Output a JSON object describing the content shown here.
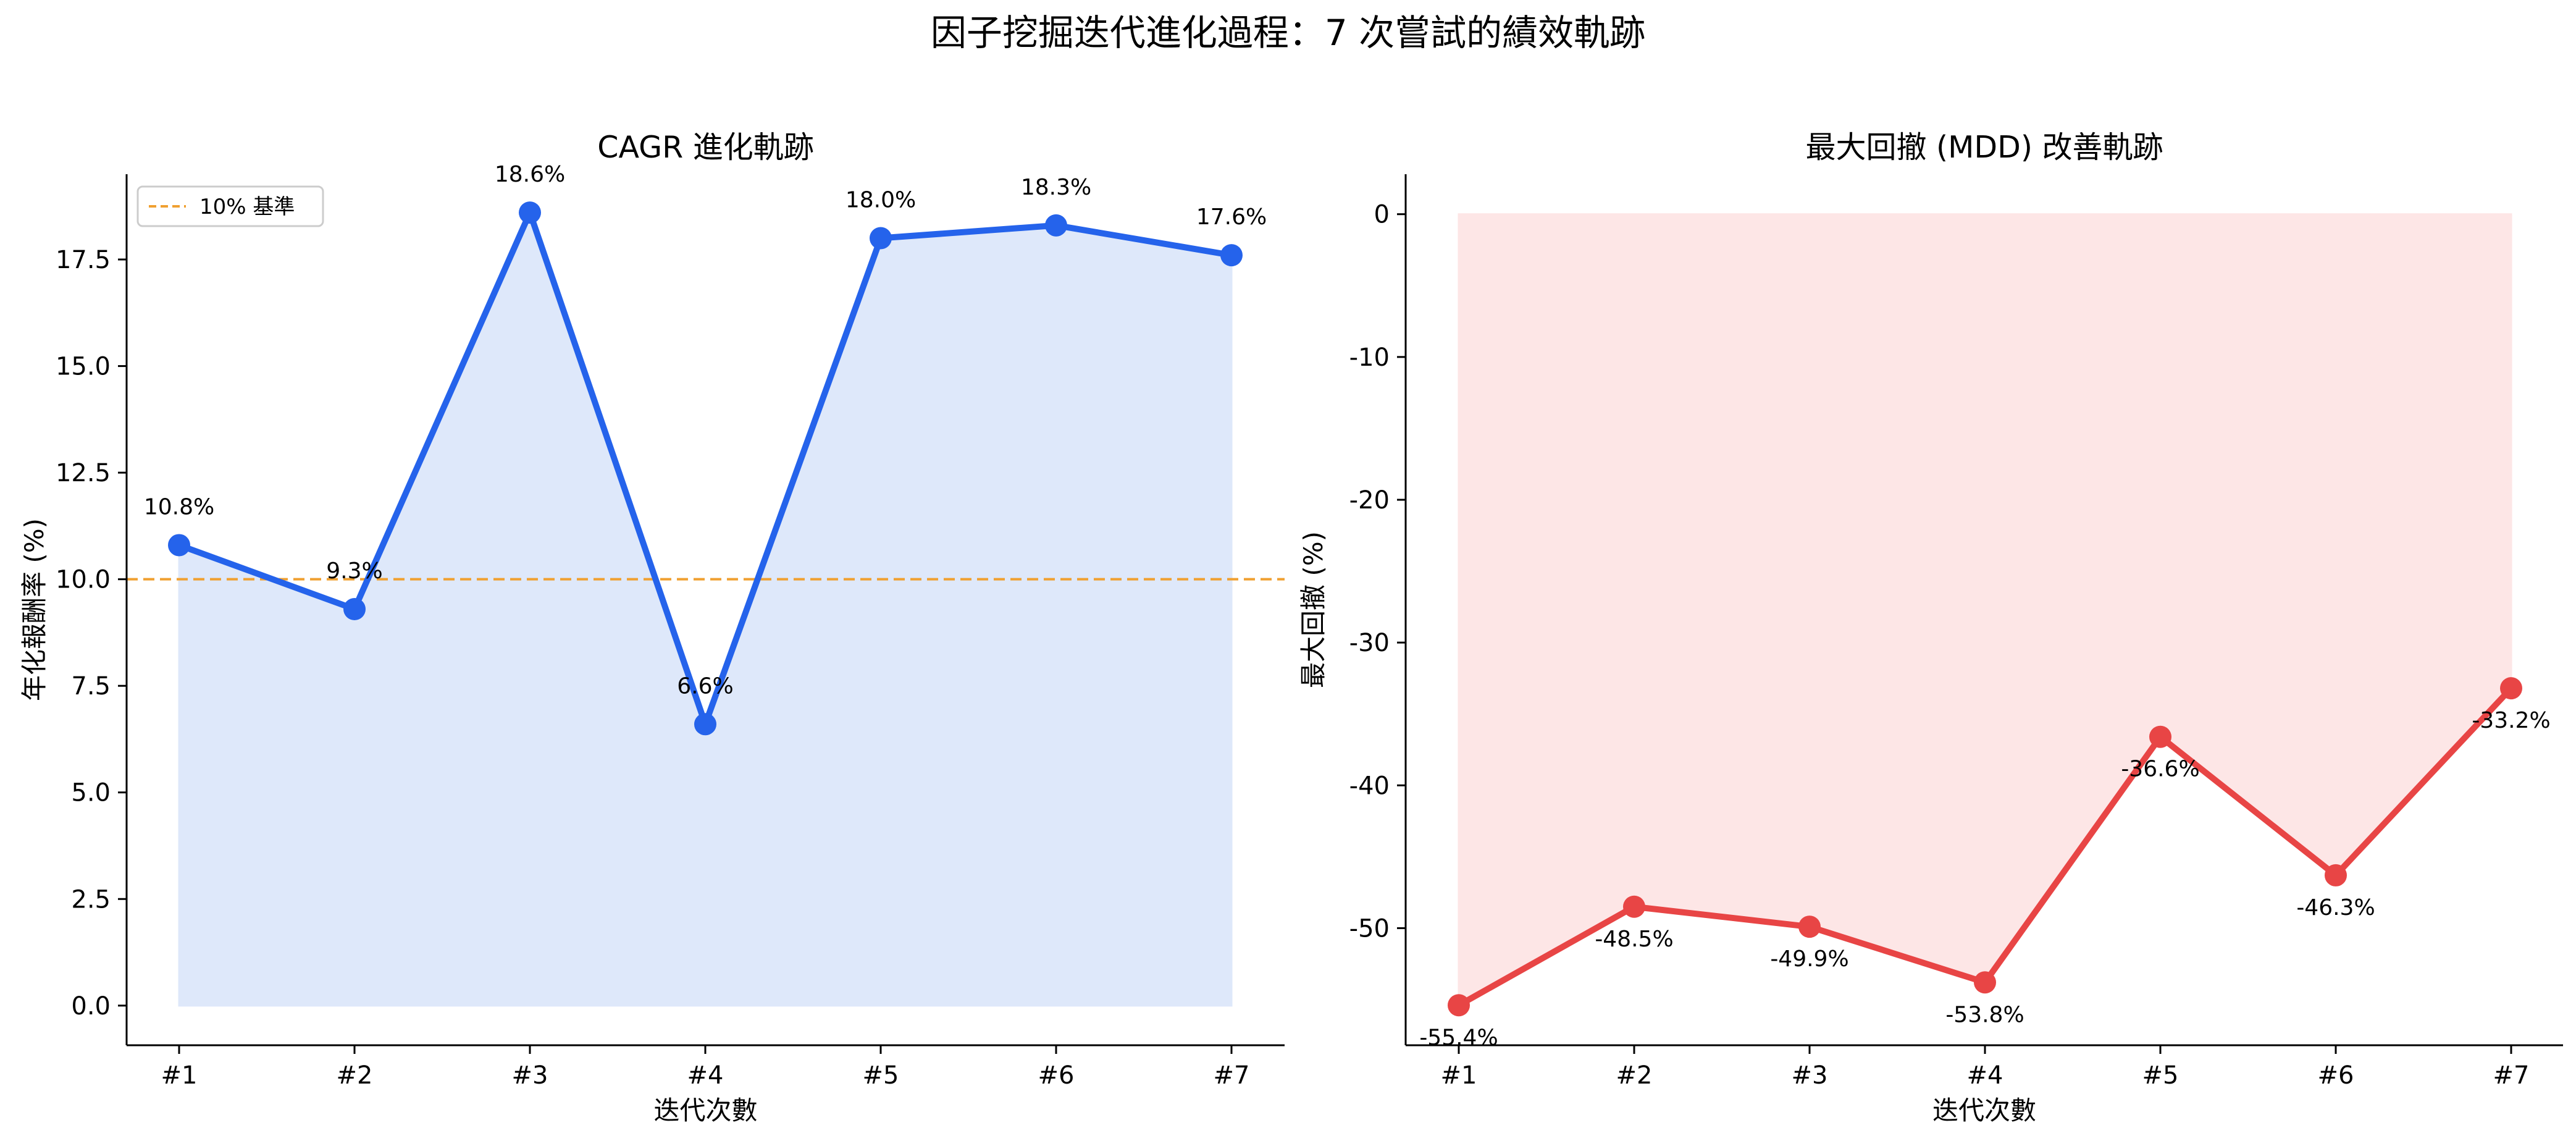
{
  "suptitle": "因子挖掘迭代進化過程：7 次嘗試的績效軌跡",
  "chart_data": [
    {
      "type": "line",
      "title": "CAGR 進化軌跡",
      "xlabel": "迭代次數",
      "ylabel": "年化報酬率 (%)",
      "categories": [
        "#1",
        "#2",
        "#3",
        "#4",
        "#5",
        "#6",
        "#7"
      ],
      "values": [
        10.8,
        9.3,
        18.6,
        6.6,
        18.0,
        18.3,
        17.6
      ],
      "data_labels": [
        "10.8%",
        "9.3%",
        "18.6%",
        "6.6%",
        "18.0%",
        "18.3%",
        "17.6%"
      ],
      "ylim": [
        -0.93,
        19.5
      ],
      "yticks": [
        0.0,
        2.5,
        5.0,
        7.5,
        10.0,
        12.5,
        15.0,
        17.5
      ],
      "ytick_labels": [
        "0.0",
        "2.5",
        "5.0",
        "7.5",
        "10.0",
        "12.5",
        "15.0",
        "17.5"
      ],
      "fill_to": 0,
      "color": "#2563eb",
      "fill_color": "#dbe6fa",
      "label_side": "above",
      "reference_line": {
        "value": 10,
        "label": "10% 基準",
        "color": "#f0a030"
      },
      "legend": "top-left",
      "grid": false
    },
    {
      "type": "line",
      "title": "最大回撤 (MDD) 改善軌跡",
      "xlabel": "迭代次數",
      "ylabel": "最大回撤 (%)",
      "categories": [
        "#1",
        "#2",
        "#3",
        "#4",
        "#5",
        "#6",
        "#7"
      ],
      "values": [
        -55.4,
        -48.5,
        -49.9,
        -53.8,
        -36.6,
        -46.3,
        -33.2
      ],
      "data_labels": [
        "-55.4%",
        "-48.5%",
        "-49.9%",
        "-53.8%",
        "-36.6%",
        "-46.3%",
        "-33.2%"
      ],
      "ylim": [
        -58.2,
        2.8
      ],
      "yticks": [
        0,
        -10,
        -20,
        -30,
        -40,
        -50
      ],
      "ytick_labels": [
        "0",
        "-10",
        "-20",
        "-30",
        "-40",
        "-50"
      ],
      "fill_to": 0,
      "color": "#e84545",
      "fill_color": "#fde4e4",
      "label_side": "below",
      "grid": false
    }
  ]
}
